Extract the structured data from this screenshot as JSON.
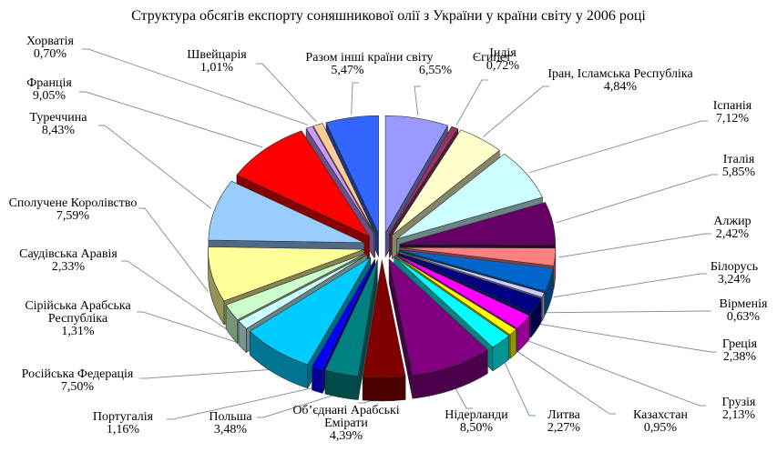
{
  "title": "Структура обсягів експорту соняшникової олії  з України у країни світу у 2006 році",
  "colors": {
    "background": "#FFFFFF",
    "text": "#000000",
    "leader_line": "#8293AD",
    "slice_outline": "#303030"
  },
  "chart_data": {
    "type": "pie",
    "style": "3d-exploded-pie",
    "title": "Структура обсягів експорту соняшникової олії  з України у країни світу у 2006 році",
    "unit": "%",
    "values_are_percent": true,
    "direction": "clockwise",
    "start_angle_deg": 0,
    "legend_position": "callout-labels",
    "slices": [
      {
        "label": "Єгипет",
        "value": 6.55,
        "pct_label": "6,55%",
        "color": "#9999FF"
      },
      {
        "label": "Індія",
        "value": 0.72,
        "pct_label": "0,72%",
        "color": "#993366"
      },
      {
        "label": "Іран, Ісламська Республіка",
        "value": 4.84,
        "pct_label": "4,84%",
        "color": "#FFFFCC"
      },
      {
        "label": "Іспанія",
        "value": 7.12,
        "pct_label": "7,12%",
        "color": "#CCFFFF"
      },
      {
        "label": "Італія",
        "value": 5.85,
        "pct_label": "5,85%",
        "color": "#660066"
      },
      {
        "label": "Алжир",
        "value": 2.42,
        "pct_label": "2,42%",
        "color": "#FF8080"
      },
      {
        "label": "Білорусь",
        "value": 3.24,
        "pct_label": "3,24%",
        "color": "#0066CC"
      },
      {
        "label": "Вірменія",
        "value": 0.63,
        "pct_label": "0,63%",
        "color": "#CCCCFF"
      },
      {
        "label": "Греція",
        "value": 2.38,
        "pct_label": "2,38%",
        "color": "#000080"
      },
      {
        "label": "Грузія",
        "value": 2.13,
        "pct_label": "2,13%",
        "color": "#FF00FF"
      },
      {
        "label": "Казахстан",
        "value": 0.95,
        "pct_label": "0,95%",
        "color": "#FFFF00"
      },
      {
        "label": "Литва",
        "value": 2.27,
        "pct_label": "2,27%",
        "color": "#00FFFF"
      },
      {
        "label": "Нідерланди",
        "value": 8.5,
        "pct_label": "8,50%",
        "color": "#800080"
      },
      {
        "label": "Об’єднані Арабські Емірати",
        "value": 4.39,
        "pct_label": "4,39%",
        "color": "#800000"
      },
      {
        "label": "Польша",
        "value": 3.48,
        "pct_label": "3,48%",
        "color": "#008080"
      },
      {
        "label": "Португалія",
        "value": 1.16,
        "pct_label": "1,16%",
        "color": "#0000FF"
      },
      {
        "label": "Російська Федерація",
        "value": 7.5,
        "pct_label": "7,50%",
        "color": "#00CCFF"
      },
      {
        "label": "Сірійська Арабська Республіка",
        "value": 1.31,
        "pct_label": "1,31%",
        "color": "#CCFFFF"
      },
      {
        "label": "Саудівська Аравія",
        "value": 2.33,
        "pct_label": "2,33%",
        "color": "#CCFFCC"
      },
      {
        "label": "Сполучене Королівство",
        "value": 7.59,
        "pct_label": "7,59%",
        "color": "#FFFF99"
      },
      {
        "label": "Туреччина",
        "value": 8.43,
        "pct_label": "8,43%",
        "color": "#99CCFF"
      },
      {
        "label": "Франція",
        "value": 9.05,
        "pct_label": "9,05%",
        "color": "#FF0000"
      },
      {
        "label": "Хорватія",
        "value": 0.7,
        "pct_label": "0,70%",
        "color": "#CC99FF"
      },
      {
        "label": "Швейцарія",
        "value": 1.01,
        "pct_label": "1,01%",
        "color": "#FFCC99"
      },
      {
        "label": "Разом інші країни світу",
        "value": 5.47,
        "pct_label": "5,47%",
        "color": "#3366FF"
      }
    ]
  }
}
